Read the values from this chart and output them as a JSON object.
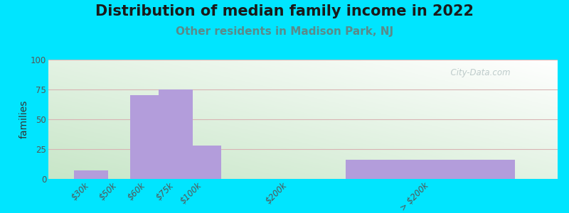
{
  "title": "Distribution of median family income in 2022",
  "subtitle": "Other residents in Madison Park, NJ",
  "ylabel": "families",
  "categories": [
    "$30k",
    "$50k",
    "$60k",
    "$75k",
    "$100k",
    "$200k",
    "> $200k"
  ],
  "x_positions": [
    1,
    2,
    3,
    4,
    5,
    8,
    13
  ],
  "bar_widths": [
    1.2,
    1.2,
    1.2,
    1.2,
    1.2,
    1.2,
    6.0
  ],
  "values": [
    7,
    0,
    70,
    75,
    28,
    0,
    16
  ],
  "bar_color": "#b39ddb",
  "background_outer": "#00e5ff",
  "ylim": [
    0,
    100
  ],
  "yticks": [
    0,
    25,
    50,
    75,
    100
  ],
  "watermark": "  City-Data.com",
  "title_fontsize": 15,
  "subtitle_fontsize": 11,
  "ylabel_fontsize": 10,
  "tick_fontsize": 8.5,
  "subtitle_color": "#5a8a8a",
  "grid_color": "#d8b4b4",
  "xlim": [
    -0.5,
    17.5
  ]
}
